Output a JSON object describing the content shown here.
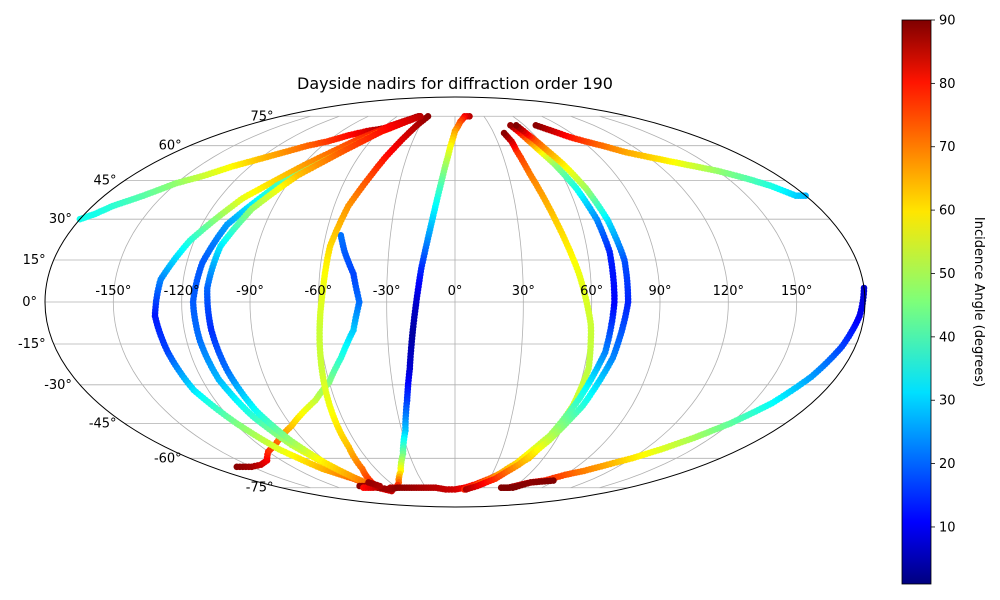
{
  "chart_data": {
    "type": "scatter",
    "projection": "mollweide",
    "title": "Dayside nadirs for diffraction order 190",
    "grid": true,
    "lon_ticks": [
      "-150°",
      "-120°",
      "-90°",
      "-60°",
      "-30°",
      "0°",
      "30°",
      "60°",
      "90°",
      "120°",
      "150°"
    ],
    "lat_ticks": [
      "75°",
      "60°",
      "45°",
      "30°",
      "15°",
      "0°",
      "-15°",
      "-30°",
      "-45°",
      "-60°",
      "-75°"
    ],
    "colorbar": {
      "label": "Incidence Angle (degrees)",
      "colormap": "jet",
      "range": [
        1,
        90
      ],
      "ticks": [
        "10",
        "20",
        "30",
        "40",
        "50",
        "60",
        "70",
        "80",
        "90"
      ]
    },
    "series": [
      {
        "points": [
          [
            180,
            39,
            28
          ],
          [
            175,
            39,
            30
          ],
          [
            168,
            43,
            37
          ],
          [
            160,
            46,
            42
          ],
          [
            150,
            49,
            47
          ],
          [
            140,
            51,
            52
          ],
          [
            130,
            53,
            57
          ],
          [
            120,
            55,
            61
          ],
          [
            110,
            57,
            64
          ],
          [
            100,
            60,
            69
          ],
          [
            92,
            62,
            73
          ],
          [
            85,
            64,
            77
          ],
          [
            80,
            66,
            81
          ],
          [
            75,
            68,
            85
          ],
          [
            70,
            70,
            89
          ]
        ]
      },
      {
        "points": [
          [
            -161,
            -64,
            89
          ],
          [
            -150,
            -64,
            87
          ],
          [
            -140,
            -63,
            84
          ],
          [
            -130,
            -61,
            80
          ],
          [
            -120,
            -57,
            76
          ],
          [
            -110,
            -54,
            72
          ],
          [
            -100,
            -50,
            67
          ],
          [
            -90,
            -46,
            62
          ],
          [
            -80,
            -41,
            57
          ],
          [
            -70,
            -36,
            52
          ],
          [
            -60,
            -29,
            46
          ],
          [
            -52,
            -20,
            38
          ],
          [
            -45,
            -10,
            30
          ],
          [
            -42,
            0,
            22
          ],
          [
            -45,
            10,
            18
          ],
          [
            -50,
            18,
            20
          ],
          [
            -53,
            24,
            22
          ]
        ]
      },
      {
        "points": [
          [
            -180,
            30,
            36
          ],
          [
            -175,
            32,
            36
          ],
          [
            -170,
            35,
            38
          ],
          [
            -160,
            39,
            42
          ],
          [
            -150,
            44,
            47
          ],
          [
            -140,
            47,
            52
          ],
          [
            -130,
            51,
            57
          ],
          [
            -120,
            54,
            62
          ],
          [
            -110,
            57,
            66
          ],
          [
            -100,
            60,
            70
          ],
          [
            -90,
            62,
            74
          ],
          [
            -80,
            65,
            78
          ],
          [
            -70,
            67,
            82
          ],
          [
            -62,
            68,
            86
          ],
          [
            -55,
            69,
            89
          ]
        ]
      },
      {
        "points": [
          [
            15,
            75,
            85
          ],
          [
            10,
            75,
            80
          ],
          [
            5,
            72,
            73
          ],
          [
            0,
            67,
            65
          ],
          [
            -3,
            60,
            57
          ],
          [
            -6,
            50,
            47
          ],
          [
            -9,
            38,
            37
          ],
          [
            -12,
            25,
            27
          ],
          [
            -15,
            12,
            16
          ],
          [
            -17,
            0,
            8
          ],
          [
            -19,
            -12,
            4
          ],
          [
            -21,
            -24,
            8
          ],
          [
            -24,
            -36,
            17
          ],
          [
            -28,
            -48,
            29
          ],
          [
            -34,
            -58,
            44
          ],
          [
            -42,
            -66,
            57
          ],
          [
            -52,
            -72,
            70
          ],
          [
            -60,
            -75,
            79
          ],
          [
            -67,
            -75,
            86
          ]
        ]
      },
      {
        "points": [
          [
            -28,
            75,
            89
          ],
          [
            -33,
            70,
            86
          ],
          [
            -38,
            63,
            82
          ],
          [
            -43,
            55,
            78
          ],
          [
            -48,
            45,
            72
          ],
          [
            -53,
            35,
            66
          ],
          [
            -57,
            20,
            60
          ],
          [
            -58,
            5,
            55
          ],
          [
            -60,
            -10,
            52
          ],
          [
            -62,
            -25,
            52
          ],
          [
            -64,
            -40,
            56
          ],
          [
            -66,
            -55,
            62
          ],
          [
            -70,
            -65,
            69
          ],
          [
            -76,
            -71,
            74
          ],
          [
            -80,
            -75,
            80
          ]
        ]
      },
      {
        "points": [
          [
            -38,
            75,
            88
          ],
          [
            -45,
            73,
            85
          ],
          [
            -55,
            70,
            80
          ],
          [
            -70,
            63,
            74
          ],
          [
            -88,
            52,
            66
          ],
          [
            -108,
            38,
            55
          ],
          [
            -122,
            22,
            38
          ],
          [
            -130,
            8,
            24
          ],
          [
            -132,
            -5,
            14
          ],
          [
            -130,
            -18,
            18
          ],
          [
            -127,
            -32,
            32
          ],
          [
            -119,
            -45,
            45
          ],
          [
            -111,
            -56,
            54
          ],
          [
            -100,
            -65,
            63
          ],
          [
            -88,
            -70,
            70
          ],
          [
            -80,
            -75,
            77
          ],
          [
            -72,
            -77,
            84
          ]
        ]
      },
      {
        "points": [
          [
            -36,
            75,
            80
          ],
          [
            -45,
            72,
            75
          ],
          [
            -60,
            66,
            67
          ],
          [
            -75,
            56,
            56
          ],
          [
            -95,
            43,
            40
          ],
          [
            -108,
            28,
            26
          ],
          [
            -113,
            14,
            20
          ],
          [
            -115,
            0,
            20
          ],
          [
            -114,
            -14,
            22
          ],
          [
            -112,
            -28,
            28
          ],
          [
            -107,
            -42,
            38
          ],
          [
            -100,
            -54,
            50
          ],
          [
            -92,
            -63,
            61
          ],
          [
            -86,
            -70,
            68
          ],
          [
            -80,
            -75,
            75
          ]
        ]
      },
      {
        "points": [
          [
            -36,
            75,
            85
          ],
          [
            -45,
            72,
            82
          ],
          [
            -58,
            67,
            78
          ],
          [
            -72,
            58,
            72
          ],
          [
            -88,
            47,
            62
          ],
          [
            -100,
            34,
            48
          ],
          [
            -107,
            20,
            33
          ],
          [
            -109,
            5,
            21
          ],
          [
            -108,
            -10,
            16
          ],
          [
            -106,
            -25,
            22
          ],
          [
            -103,
            -40,
            35
          ],
          [
            -98,
            -52,
            47
          ],
          [
            -92,
            -62,
            58
          ],
          [
            -86,
            -69,
            65
          ],
          [
            -80,
            -75,
            72
          ]
        ]
      },
      {
        "points": [
          [
            -95,
            -74,
            89
          ],
          [
            -90,
            -74,
            88
          ],
          [
            -80,
            -75,
            88
          ],
          [
            -70,
            -76,
            87
          ],
          [
            -60,
            -75,
            89
          ],
          [
            -50,
            -75,
            88
          ],
          [
            -40,
            -75,
            87
          ],
          [
            -30,
            -75,
            86
          ],
          [
            -20,
            -75,
            85
          ],
          [
            -10,
            -76,
            84
          ],
          [
            0,
            -76,
            83
          ],
          [
            10,
            -75,
            80
          ],
          [
            20,
            -73,
            76
          ],
          [
            30,
            -70,
            72
          ],
          [
            40,
            -66,
            67
          ],
          [
            50,
            -60,
            62
          ],
          [
            56,
            -50,
            57
          ],
          [
            60,
            -38,
            53
          ],
          [
            62,
            -24,
            51
          ],
          [
            60,
            -8,
            52
          ],
          [
            55,
            10,
            55
          ],
          [
            48,
            30,
            61
          ],
          [
            42,
            48,
            68
          ],
          [
            40,
            58,
            75
          ],
          [
            40,
            62,
            82
          ],
          [
            38,
            66,
            89
          ]
        ]
      },
      {
        "points": [
          [
            10,
            -76,
            76
          ],
          [
            20,
            -74,
            72
          ],
          [
            32,
            -70,
            67
          ],
          [
            44,
            -62,
            60
          ],
          [
            55,
            -50,
            50
          ],
          [
            62,
            -35,
            38
          ],
          [
            68,
            -18,
            24
          ],
          [
            70,
            0,
            12
          ],
          [
            70,
            18,
            15
          ],
          [
            68,
            30,
            24
          ],
          [
            64,
            42,
            36
          ],
          [
            59,
            52,
            47
          ],
          [
            55,
            58,
            58
          ],
          [
            52,
            63,
            69
          ],
          [
            50,
            67,
            79
          ],
          [
            48,
            70,
            88
          ]
        ]
      },
      {
        "points": [
          [
            12,
            -76,
            86
          ],
          [
            22,
            -74,
            82
          ],
          [
            35,
            -70,
            75
          ],
          [
            46,
            -63,
            65
          ],
          [
            56,
            -52,
            52
          ],
          [
            65,
            -38,
            38
          ],
          [
            72,
            -20,
            24
          ],
          [
            76,
            0,
            15
          ],
          [
            76,
            15,
            19
          ],
          [
            73,
            30,
            32
          ],
          [
            69,
            42,
            48
          ],
          [
            64,
            52,
            58
          ],
          [
            60,
            58,
            65
          ],
          [
            57,
            63,
            72
          ],
          [
            55,
            66,
            80
          ],
          [
            53,
            70,
            90
          ]
        ]
      },
      {
        "points": [
          [
            48,
            -75,
            88
          ],
          [
            55,
            -75,
            88
          ],
          [
            60,
            -74,
            86
          ],
          [
            65,
            -73,
            83
          ],
          [
            70,
            -72,
            80
          ],
          [
            80,
            -71,
            76
          ],
          [
            90,
            -68,
            72
          ],
          [
            100,
            -66,
            68
          ],
          [
            110,
            -63,
            64
          ],
          [
            120,
            -60,
            59
          ],
          [
            130,
            -56,
            54
          ],
          [
            140,
            -51,
            49
          ],
          [
            150,
            -45,
            43
          ],
          [
            160,
            -37,
            35
          ],
          [
            168,
            -27,
            26
          ],
          [
            174,
            -16,
            18
          ],
          [
            178,
            -5,
            11
          ],
          [
            180,
            5,
            8
          ]
        ]
      },
      {
        "points": [
          [
            48,
            -75,
            92
          ],
          [
            60,
            -75,
            90
          ],
          [
            70,
            -72,
            89
          ],
          [
            88,
            -71,
            90
          ]
        ]
      },
      {
        "points": [
          [
            -95,
            -75,
            78
          ],
          [
            -85,
            -75,
            82
          ],
          [
            -75,
            -74,
            86
          ],
          [
            -80,
            -72,
            88
          ]
        ]
      }
    ]
  }
}
